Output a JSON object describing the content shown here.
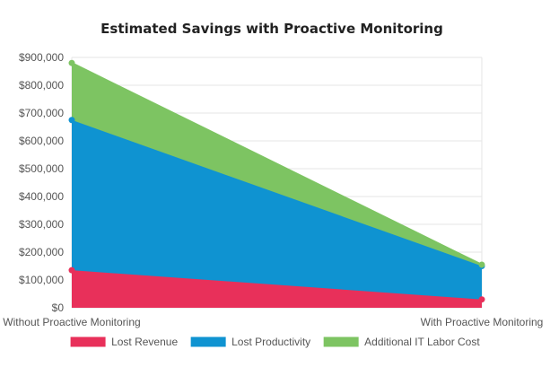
{
  "chart_data": {
    "type": "area",
    "stacked": true,
    "title": "Estimated Savings with Proactive Monitoring",
    "xlabel": "",
    "ylabel": "",
    "categories": [
      "Without Proactive Monitoring",
      "With Proactive Monitoring"
    ],
    "y_ticks": [
      0,
      100000,
      200000,
      300000,
      400000,
      500000,
      600000,
      700000,
      800000,
      900000
    ],
    "y_tick_labels": [
      "$0",
      "$100,000",
      "$200,000",
      "$300,000",
      "$400,000",
      "$500,000",
      "$600,000",
      "$700,000",
      "$800,000",
      "$900,000"
    ],
    "ylim": [
      0,
      900000
    ],
    "grid": true,
    "legend_position": "bottom",
    "series": [
      {
        "name": "Lost Revenue",
        "values": [
          135000,
          30000
        ],
        "color": "#e8305a"
      },
      {
        "name": "Lost Productivity",
        "values": [
          540000,
          120000
        ],
        "color": "#0f93d1"
      },
      {
        "name": "Additional IT Labor Cost",
        "values": [
          205000,
          5000
        ],
        "color": "#7dc462"
      }
    ]
  }
}
